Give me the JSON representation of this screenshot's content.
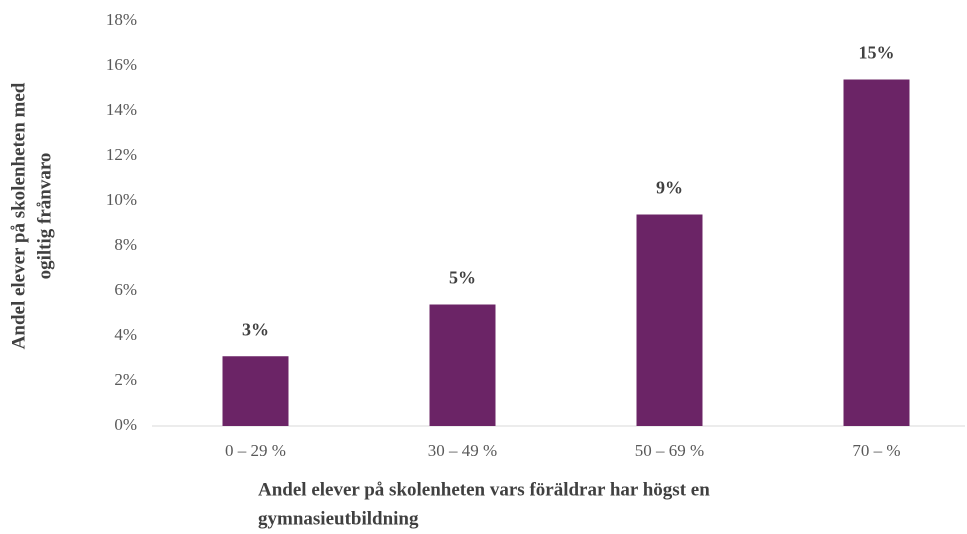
{
  "chart_data": {
    "type": "bar",
    "ylabel": [
      "Andel elever på skolenheten med",
      "ogiltig frånvaro"
    ],
    "xlabel": [
      "Andel elever på skolenheten vars föräldrar har högst en",
      "gymnasieutbildning"
    ],
    "categories": [
      "0 – 29 %",
      "30 – 49 %",
      "50 – 69 %",
      "70 – %"
    ],
    "values": [
      3.1,
      5.4,
      9.4,
      15.4
    ],
    "value_labels": [
      "3%",
      "5%",
      "9%",
      "15%"
    ],
    "color": "#6b2466",
    "ylim": [
      0,
      18
    ],
    "yticks": [
      {
        "value": 0,
        "label": "0%"
      },
      {
        "value": 2,
        "label": "2%"
      },
      {
        "value": 4,
        "label": "4%"
      },
      {
        "value": 6,
        "label": "6%"
      },
      {
        "value": 8,
        "label": "8%"
      },
      {
        "value": 10,
        "label": "10%"
      },
      {
        "value": 12,
        "label": "12%"
      },
      {
        "value": 14,
        "label": "14%"
      },
      {
        "value": 16,
        "label": "16%"
      },
      {
        "value": 18,
        "label": "18%"
      }
    ],
    "grid": false
  }
}
